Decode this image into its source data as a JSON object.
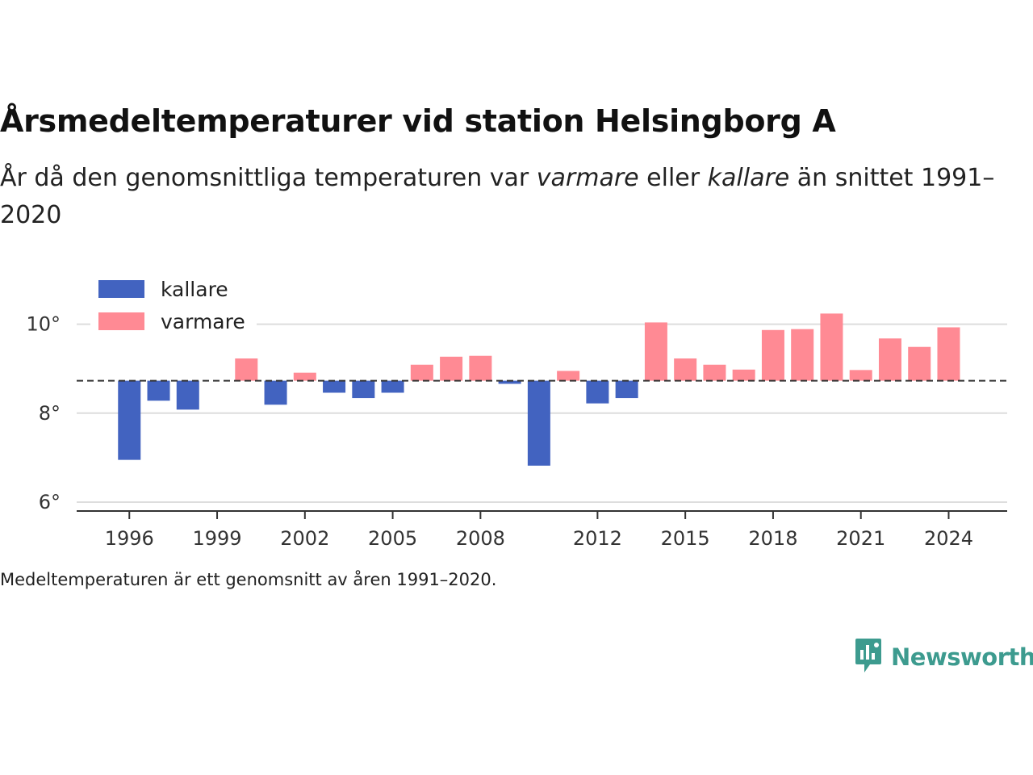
{
  "title": "Årsmedeltemperaturer vid station Helsingborg A",
  "subtitle": {
    "part1": "År då den genomsnittliga temperaturen var ",
    "warm_word": "varmare",
    "part2": " eller ",
    "cold_word": "kallare",
    "part3": " än snittet 1991–2020"
  },
  "footnote": "Medeltemperaturen är ett genomsnitt av åren 1991–2020.",
  "brand": {
    "name": "Newsworthy",
    "color": "#3d9b8f",
    "icon": "newsworthy-logo-icon"
  },
  "colors": {
    "kallare": "#4263c0",
    "varmare": "#ff8a94",
    "baseline": "#333333",
    "grid": "#dddddd"
  },
  "chart_data": {
    "type": "bar",
    "baseline": 8.73,
    "ylim": [
      5.8,
      11.3
    ],
    "xlim": [
      1994.2,
      2026.0
    ],
    "yticks": [
      6,
      8,
      10
    ],
    "ytick_labels": [
      "6°",
      "8°",
      "10°"
    ],
    "xticks": [
      1996,
      1999,
      2002,
      2005,
      2008,
      2012,
      2015,
      2018,
      2021,
      2024
    ],
    "xtick_labels": [
      "1996",
      "1999",
      "2002",
      "2005",
      "2008",
      "2012",
      "2015",
      "2018",
      "2021",
      "2024"
    ],
    "legend": [
      {
        "key": "kallare",
        "label": "kallare"
      },
      {
        "key": "varmare",
        "label": "varmare"
      }
    ],
    "legend_position": "top-left",
    "grid": true,
    "series": [
      {
        "x": 1996,
        "y": 6.95,
        "category": "kallare"
      },
      {
        "x": 1997,
        "y": 8.28,
        "category": "kallare"
      },
      {
        "x": 1998,
        "y": 8.08,
        "category": "kallare"
      },
      {
        "x": 2000,
        "y": 9.23,
        "category": "varmare"
      },
      {
        "x": 2001,
        "y": 8.19,
        "category": "kallare"
      },
      {
        "x": 2002,
        "y": 8.91,
        "category": "varmare"
      },
      {
        "x": 2003,
        "y": 8.46,
        "category": "kallare"
      },
      {
        "x": 2004,
        "y": 8.34,
        "category": "kallare"
      },
      {
        "x": 2005,
        "y": 8.46,
        "category": "kallare"
      },
      {
        "x": 2006,
        "y": 9.09,
        "category": "varmare"
      },
      {
        "x": 2007,
        "y": 9.27,
        "category": "varmare"
      },
      {
        "x": 2008,
        "y": 9.29,
        "category": "varmare"
      },
      {
        "x": 2009,
        "y": 8.66,
        "category": "kallare"
      },
      {
        "x": 2010,
        "y": 6.82,
        "category": "kallare"
      },
      {
        "x": 2011,
        "y": 8.95,
        "category": "varmare"
      },
      {
        "x": 2012,
        "y": 8.22,
        "category": "kallare"
      },
      {
        "x": 2013,
        "y": 8.34,
        "category": "kallare"
      },
      {
        "x": 2014,
        "y": 10.04,
        "category": "varmare"
      },
      {
        "x": 2015,
        "y": 9.23,
        "category": "varmare"
      },
      {
        "x": 2016,
        "y": 9.09,
        "category": "varmare"
      },
      {
        "x": 2017,
        "y": 8.98,
        "category": "varmare"
      },
      {
        "x": 2018,
        "y": 9.87,
        "category": "varmare"
      },
      {
        "x": 2019,
        "y": 9.89,
        "category": "varmare"
      },
      {
        "x": 2020,
        "y": 10.24,
        "category": "varmare"
      },
      {
        "x": 2021,
        "y": 8.97,
        "category": "varmare"
      },
      {
        "x": 2022,
        "y": 9.68,
        "category": "varmare"
      },
      {
        "x": 2023,
        "y": 9.49,
        "category": "varmare"
      },
      {
        "x": 2024,
        "y": 9.93,
        "category": "varmare"
      }
    ]
  }
}
